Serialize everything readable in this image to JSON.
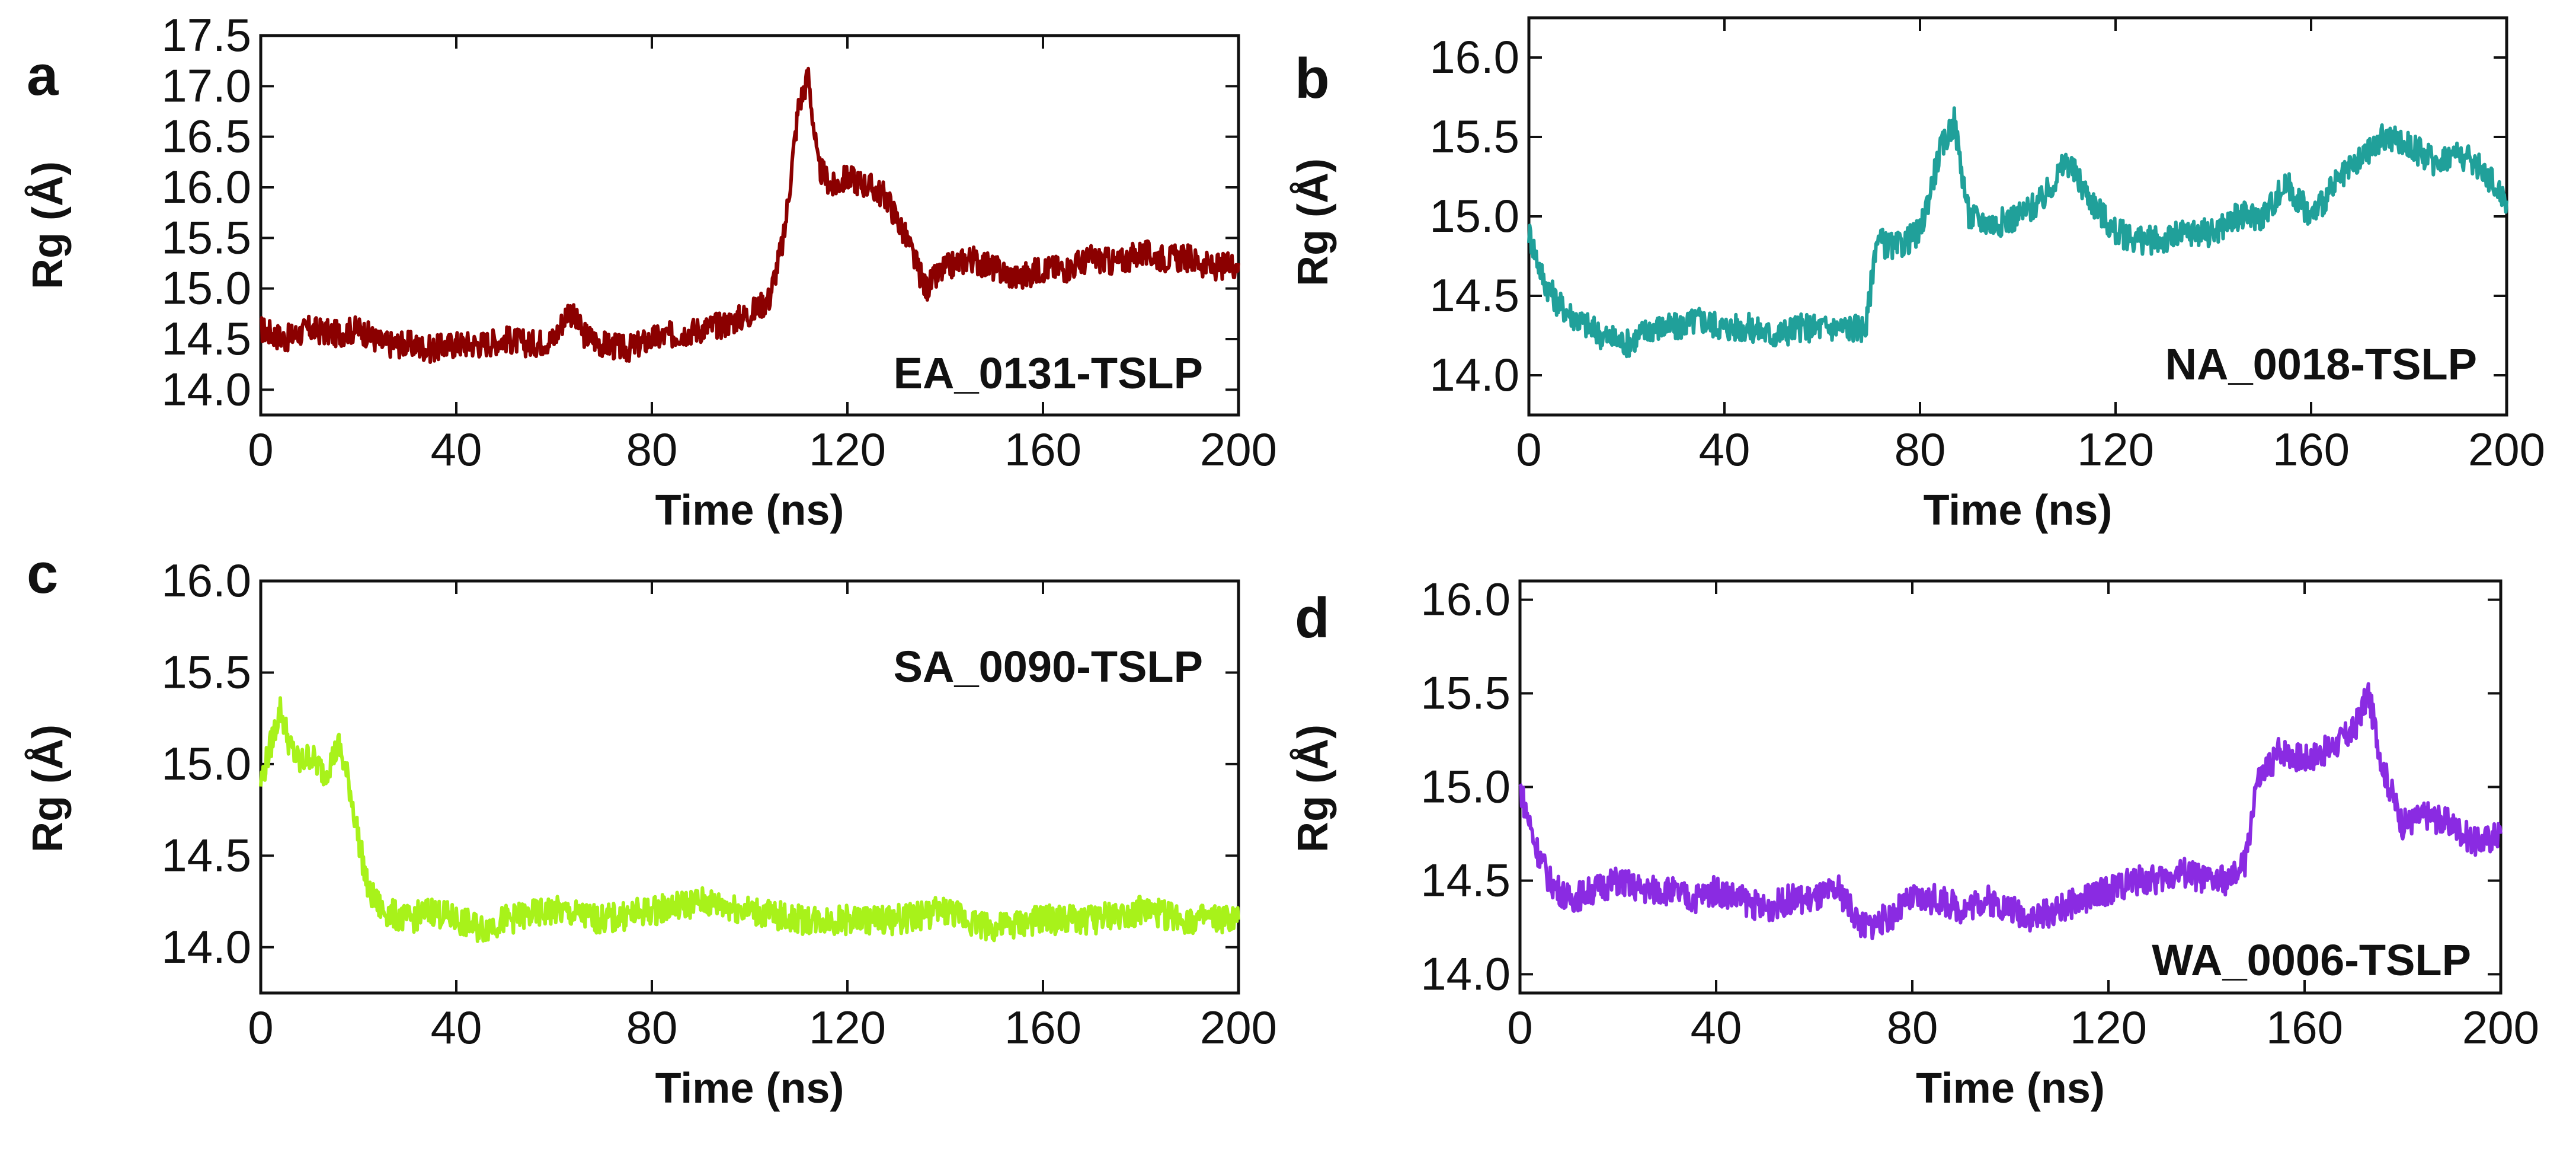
{
  "chart_data": [
    {
      "type": "line",
      "panel": "a",
      "label": "EA_0131-TSLP",
      "color": "#8B0000",
      "xlabel": "Time (ns)",
      "ylabel": "Rg (Å)",
      "xlim": [
        0,
        200
      ],
      "ylim": [
        13.75,
        17.5
      ],
      "xticks": [
        "0",
        "40",
        "80",
        "120",
        "160",
        "200"
      ],
      "yticks": [
        "14.0",
        "14.5",
        "15.0",
        "15.5",
        "16.0",
        "16.5",
        "17.0",
        "17.5"
      ],
      "x": [
        0,
        5,
        10,
        15,
        20,
        25,
        30,
        35,
        40,
        45,
        50,
        55,
        60,
        63,
        66,
        70,
        75,
        80,
        85,
        90,
        95,
        100,
        104,
        107,
        110,
        112,
        114,
        117,
        120,
        125,
        128,
        132,
        136,
        140,
        145,
        150,
        155,
        160,
        165,
        170,
        175,
        180,
        185,
        190,
        195,
        200
      ],
      "y": [
        14.6,
        14.5,
        14.6,
        14.55,
        14.6,
        14.45,
        14.45,
        14.4,
        14.45,
        14.45,
        14.5,
        14.45,
        14.5,
        14.8,
        14.55,
        14.45,
        14.4,
        14.5,
        14.55,
        14.6,
        14.65,
        14.75,
        14.9,
        15.5,
        16.8,
        17.1,
        16.2,
        16.0,
        16.1,
        16.0,
        15.9,
        15.5,
        15.0,
        15.2,
        15.3,
        15.2,
        15.1,
        15.2,
        15.2,
        15.3,
        15.25,
        15.35,
        15.3,
        15.3,
        15.2,
        15.25
      ]
    },
    {
      "type": "line",
      "panel": "b",
      "label": "NA_0018-TSLP",
      "color": "#20A09A",
      "xlabel": "Time (ns)",
      "ylabel": "Rg (Å)",
      "xlim": [
        0,
        200
      ],
      "ylim": [
        13.75,
        16.25
      ],
      "xticks": [
        "0",
        "40",
        "80",
        "120",
        "160",
        "200"
      ],
      "yticks": [
        "14.0",
        "14.5",
        "15.0",
        "15.5",
        "16.0"
      ],
      "x": [
        0,
        3,
        6,
        10,
        15,
        20,
        25,
        30,
        35,
        40,
        45,
        50,
        55,
        60,
        65,
        69,
        71,
        75,
        80,
        84,
        87,
        90,
        95,
        100,
        105,
        110,
        115,
        120,
        125,
        130,
        135,
        140,
        145,
        150,
        155,
        160,
        165,
        170,
        175,
        180,
        185,
        190,
        195,
        200
      ],
      "y": [
        14.9,
        14.6,
        14.45,
        14.35,
        14.25,
        14.2,
        14.3,
        14.3,
        14.35,
        14.3,
        14.3,
        14.25,
        14.3,
        14.3,
        14.3,
        14.3,
        14.85,
        14.8,
        14.9,
        15.4,
        15.6,
        15.0,
        14.95,
        15.0,
        15.1,
        15.35,
        15.1,
        14.9,
        14.85,
        14.85,
        14.9,
        14.9,
        15.0,
        15.0,
        15.2,
        15.0,
        15.2,
        15.35,
        15.5,
        15.45,
        15.35,
        15.4,
        15.3,
        15.1
      ]
    },
    {
      "type": "line",
      "panel": "c",
      "label": "SA_0090-TSLP",
      "color": "#A8F21A",
      "xlabel": "Time (ns)",
      "ylabel": "Rg (Å)",
      "xlim": [
        0,
        200
      ],
      "ylim": [
        13.75,
        16.0
      ],
      "xticks": [
        "0",
        "40",
        "80",
        "120",
        "160",
        "200"
      ],
      "yticks": [
        "14.0",
        "14.5",
        "15.0",
        "15.5",
        "16.0"
      ],
      "x": [
        0,
        2,
        4,
        6,
        8,
        10,
        13,
        16,
        18,
        20,
        22,
        25,
        30,
        35,
        40,
        45,
        50,
        60,
        70,
        80,
        90,
        100,
        110,
        120,
        130,
        140,
        150,
        160,
        170,
        180,
        190,
        200
      ],
      "y": [
        14.9,
        15.1,
        15.3,
        15.1,
        15.0,
        15.05,
        14.95,
        15.1,
        14.9,
        14.6,
        14.3,
        14.2,
        14.15,
        14.2,
        14.15,
        14.1,
        14.15,
        14.2,
        14.15,
        14.2,
        14.25,
        14.2,
        14.15,
        14.15,
        14.15,
        14.2,
        14.1,
        14.15,
        14.15,
        14.2,
        14.15,
        14.15
      ]
    },
    {
      "type": "line",
      "panel": "d",
      "label": "WA_0006-TSLP",
      "color": "#8A2BE2",
      "xlabel": "Time (ns)",
      "ylabel": "Rg (Å)",
      "xlim": [
        0,
        200
      ],
      "ylim": [
        13.9,
        16.1
      ],
      "xticks": [
        "0",
        "40",
        "80",
        "120",
        "160",
        "200"
      ],
      "yticks": [
        "14.0",
        "14.5",
        "15.0",
        "15.5",
        "16.0"
      ],
      "x": [
        0,
        3,
        6,
        10,
        15,
        20,
        25,
        30,
        35,
        40,
        45,
        50,
        55,
        60,
        65,
        70,
        75,
        80,
        85,
        90,
        95,
        100,
        105,
        110,
        115,
        120,
        125,
        130,
        135,
        140,
        145,
        148,
        150,
        155,
        160,
        165,
        170,
        173,
        176,
        180,
        185,
        190,
        195,
        200
      ],
      "y": [
        15.0,
        14.7,
        14.5,
        14.4,
        14.45,
        14.5,
        14.45,
        14.45,
        14.4,
        14.45,
        14.4,
        14.35,
        14.4,
        14.4,
        14.45,
        14.25,
        14.3,
        14.4,
        14.4,
        14.35,
        14.4,
        14.35,
        14.3,
        14.35,
        14.4,
        14.45,
        14.5,
        14.5,
        14.55,
        14.5,
        14.5,
        14.6,
        15.0,
        15.2,
        15.15,
        15.2,
        15.3,
        15.5,
        15.1,
        14.8,
        14.85,
        14.8,
        14.7,
        14.75
      ]
    }
  ]
}
